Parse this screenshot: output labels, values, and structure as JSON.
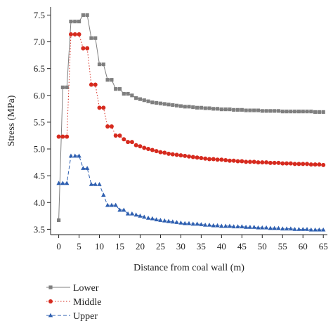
{
  "chart_data": {
    "type": "line",
    "title": "",
    "xlabel": "Distance from coal wall (m)",
    "ylabel": "Stress (MPa)",
    "xlim": [
      -2,
      66
    ],
    "ylim": [
      3.4,
      7.65
    ],
    "xticks": [
      0,
      5,
      10,
      15,
      20,
      25,
      30,
      35,
      40,
      45,
      50,
      55,
      60,
      65
    ],
    "yticks": [
      3.5,
      4.0,
      4.5,
      5.0,
      5.5,
      6.0,
      6.5,
      7.0,
      7.5
    ],
    "ytick_labels": [
      "3.5",
      "4.0",
      "4.5",
      "5.0",
      "5.5",
      "6.0",
      "6.5",
      "7.0",
      "7.5"
    ],
    "grid": false,
    "legend_position": "bottom-left",
    "series": [
      {
        "name": "Lower",
        "color": "#7f7f7f",
        "marker": "square",
        "line_style": "solid",
        "points": [
          [
            0,
            3.67
          ],
          [
            1,
            6.15
          ],
          [
            2,
            6.15
          ],
          [
            3,
            7.38
          ],
          [
            4,
            7.38
          ],
          [
            5,
            7.38
          ],
          [
            6,
            7.5
          ],
          [
            7,
            7.5
          ],
          [
            8,
            7.07
          ],
          [
            9,
            7.07
          ],
          [
            10,
            6.58
          ],
          [
            11,
            6.58
          ],
          [
            12,
            6.29
          ],
          [
            13,
            6.29
          ],
          [
            14,
            6.12
          ],
          [
            15,
            6.12
          ],
          [
            16,
            6.03
          ],
          [
            17,
            6.03
          ],
          [
            18,
            6.0
          ],
          [
            19,
            5.95
          ],
          [
            20,
            5.93
          ],
          [
            21,
            5.91
          ],
          [
            22,
            5.89
          ],
          [
            23,
            5.87
          ],
          [
            24,
            5.86
          ],
          [
            25,
            5.85
          ],
          [
            26,
            5.84
          ],
          [
            27,
            5.83
          ],
          [
            28,
            5.82
          ],
          [
            29,
            5.81
          ],
          [
            30,
            5.8
          ],
          [
            31,
            5.79
          ],
          [
            32,
            5.79
          ],
          [
            33,
            5.78
          ],
          [
            34,
            5.77
          ],
          [
            35,
            5.77
          ],
          [
            36,
            5.76
          ],
          [
            37,
            5.76
          ],
          [
            38,
            5.75
          ],
          [
            39,
            5.75
          ],
          [
            40,
            5.74
          ],
          [
            41,
            5.74
          ],
          [
            42,
            5.74
          ],
          [
            43,
            5.73
          ],
          [
            44,
            5.73
          ],
          [
            45,
            5.73
          ],
          [
            46,
            5.72
          ],
          [
            47,
            5.72
          ],
          [
            48,
            5.72
          ],
          [
            49,
            5.72
          ],
          [
            50,
            5.71
          ],
          [
            51,
            5.71
          ],
          [
            52,
            5.71
          ],
          [
            53,
            5.71
          ],
          [
            54,
            5.71
          ],
          [
            55,
            5.7
          ],
          [
            56,
            5.7
          ],
          [
            57,
            5.7
          ],
          [
            58,
            5.7
          ],
          [
            59,
            5.7
          ],
          [
            60,
            5.7
          ],
          [
            61,
            5.7
          ],
          [
            62,
            5.7
          ],
          [
            63,
            5.69
          ],
          [
            64,
            5.69
          ],
          [
            65,
            5.69
          ]
        ]
      },
      {
        "name": "Middle",
        "color": "#d62a1e",
        "marker": "circle",
        "line_style": "dotted",
        "points": [
          [
            0,
            5.23
          ],
          [
            1,
            5.23
          ],
          [
            2,
            5.23
          ],
          [
            3,
            7.14
          ],
          [
            4,
            7.14
          ],
          [
            5,
            7.14
          ],
          [
            6,
            6.88
          ],
          [
            7,
            6.88
          ],
          [
            8,
            6.2
          ],
          [
            9,
            6.2
          ],
          [
            10,
            5.77
          ],
          [
            11,
            5.77
          ],
          [
            12,
            5.42
          ],
          [
            13,
            5.42
          ],
          [
            14,
            5.25
          ],
          [
            15,
            5.25
          ],
          [
            16,
            5.18
          ],
          [
            17,
            5.13
          ],
          [
            18,
            5.13
          ],
          [
            19,
            5.07
          ],
          [
            20,
            5.05
          ],
          [
            21,
            5.02
          ],
          [
            22,
            5.0
          ],
          [
            23,
            4.98
          ],
          [
            24,
            4.96
          ],
          [
            25,
            4.94
          ],
          [
            26,
            4.93
          ],
          [
            27,
            4.91
          ],
          [
            28,
            4.9
          ],
          [
            29,
            4.89
          ],
          [
            30,
            4.88
          ],
          [
            31,
            4.87
          ],
          [
            32,
            4.86
          ],
          [
            33,
            4.85
          ],
          [
            34,
            4.84
          ],
          [
            35,
            4.83
          ],
          [
            36,
            4.82
          ],
          [
            37,
            4.81
          ],
          [
            38,
            4.81
          ],
          [
            39,
            4.8
          ],
          [
            40,
            4.8
          ],
          [
            41,
            4.79
          ],
          [
            42,
            4.78
          ],
          [
            43,
            4.78
          ],
          [
            44,
            4.77
          ],
          [
            45,
            4.77
          ],
          [
            46,
            4.76
          ],
          [
            47,
            4.76
          ],
          [
            48,
            4.76
          ],
          [
            49,
            4.75
          ],
          [
            50,
            4.75
          ],
          [
            51,
            4.75
          ],
          [
            52,
            4.74
          ],
          [
            53,
            4.74
          ],
          [
            54,
            4.74
          ],
          [
            55,
            4.73
          ],
          [
            56,
            4.73
          ],
          [
            57,
            4.73
          ],
          [
            58,
            4.72
          ],
          [
            59,
            4.72
          ],
          [
            60,
            4.72
          ],
          [
            61,
            4.72
          ],
          [
            62,
            4.71
          ],
          [
            63,
            4.71
          ],
          [
            64,
            4.71
          ],
          [
            65,
            4.7
          ]
        ]
      },
      {
        "name": "Upper",
        "color": "#2e5fb0",
        "marker": "triangle",
        "line_style": "dashed",
        "points": [
          [
            0,
            4.36
          ],
          [
            1,
            4.36
          ],
          [
            2,
            4.36
          ],
          [
            3,
            4.87
          ],
          [
            4,
            4.87
          ],
          [
            5,
            4.87
          ],
          [
            6,
            4.64
          ],
          [
            7,
            4.64
          ],
          [
            8,
            4.34
          ],
          [
            9,
            4.34
          ],
          [
            10,
            4.34
          ],
          [
            11,
            4.14
          ],
          [
            12,
            3.95
          ],
          [
            13,
            3.95
          ],
          [
            14,
            3.95
          ],
          [
            15,
            3.86
          ],
          [
            16,
            3.86
          ],
          [
            17,
            3.79
          ],
          [
            18,
            3.79
          ],
          [
            19,
            3.77
          ],
          [
            20,
            3.75
          ],
          [
            21,
            3.73
          ],
          [
            22,
            3.71
          ],
          [
            23,
            3.7
          ],
          [
            24,
            3.68
          ],
          [
            25,
            3.67
          ],
          [
            26,
            3.66
          ],
          [
            27,
            3.65
          ],
          [
            28,
            3.64
          ],
          [
            29,
            3.63
          ],
          [
            30,
            3.62
          ],
          [
            31,
            3.61
          ],
          [
            32,
            3.61
          ],
          [
            33,
            3.6
          ],
          [
            34,
            3.6
          ],
          [
            35,
            3.59
          ],
          [
            36,
            3.58
          ],
          [
            37,
            3.58
          ],
          [
            38,
            3.57
          ],
          [
            39,
            3.57
          ],
          [
            40,
            3.56
          ],
          [
            41,
            3.56
          ],
          [
            42,
            3.56
          ],
          [
            43,
            3.55
          ],
          [
            44,
            3.55
          ],
          [
            45,
            3.55
          ],
          [
            46,
            3.54
          ],
          [
            47,
            3.54
          ],
          [
            48,
            3.54
          ],
          [
            49,
            3.53
          ],
          [
            50,
            3.53
          ],
          [
            51,
            3.53
          ],
          [
            52,
            3.52
          ],
          [
            53,
            3.52
          ],
          [
            54,
            3.52
          ],
          [
            55,
            3.51
          ],
          [
            56,
            3.51
          ],
          [
            57,
            3.51
          ],
          [
            58,
            3.5
          ],
          [
            59,
            3.5
          ],
          [
            60,
            3.5
          ],
          [
            61,
            3.5
          ],
          [
            62,
            3.49
          ],
          [
            63,
            3.49
          ],
          [
            64,
            3.49
          ],
          [
            65,
            3.49
          ]
        ]
      }
    ]
  }
}
